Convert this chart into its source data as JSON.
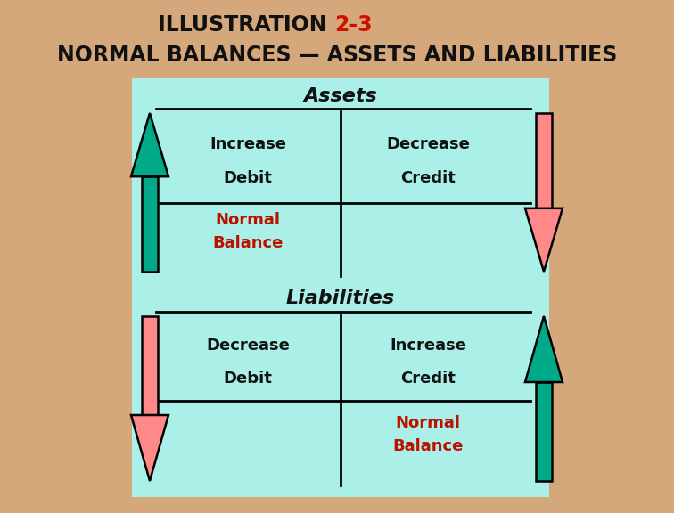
{
  "title_part1": "ILLUSTRATION ",
  "title_part2": "2-3",
  "title_color1": "#111111",
  "title_color2": "#cc1100",
  "bg_color": "#d4a87a",
  "box_color": "#aaf0e8",
  "assets_label": "Assets",
  "liabilities_label": "Liabilities",
  "assets_left_line1": "Increase",
  "assets_left_line2": "Debit",
  "assets_right_line1": "Decrease",
  "assets_right_line2": "Credit",
  "assets_normal": "Normal\nBalance",
  "liabilities_left_line1": "Decrease",
  "liabilities_left_line2": "Debit",
  "liabilities_right_line1": "Increase",
  "liabilities_right_line2": "Credit",
  "liabilities_normal": "Normal\nBalance",
  "green_color": "#00aa88",
  "pink_color": "#ff8888",
  "text_color": "#111111",
  "red_text_color": "#bb1100",
  "subtitle": "NORMAL BALANCES — ASSETS AND LIABILITIES"
}
